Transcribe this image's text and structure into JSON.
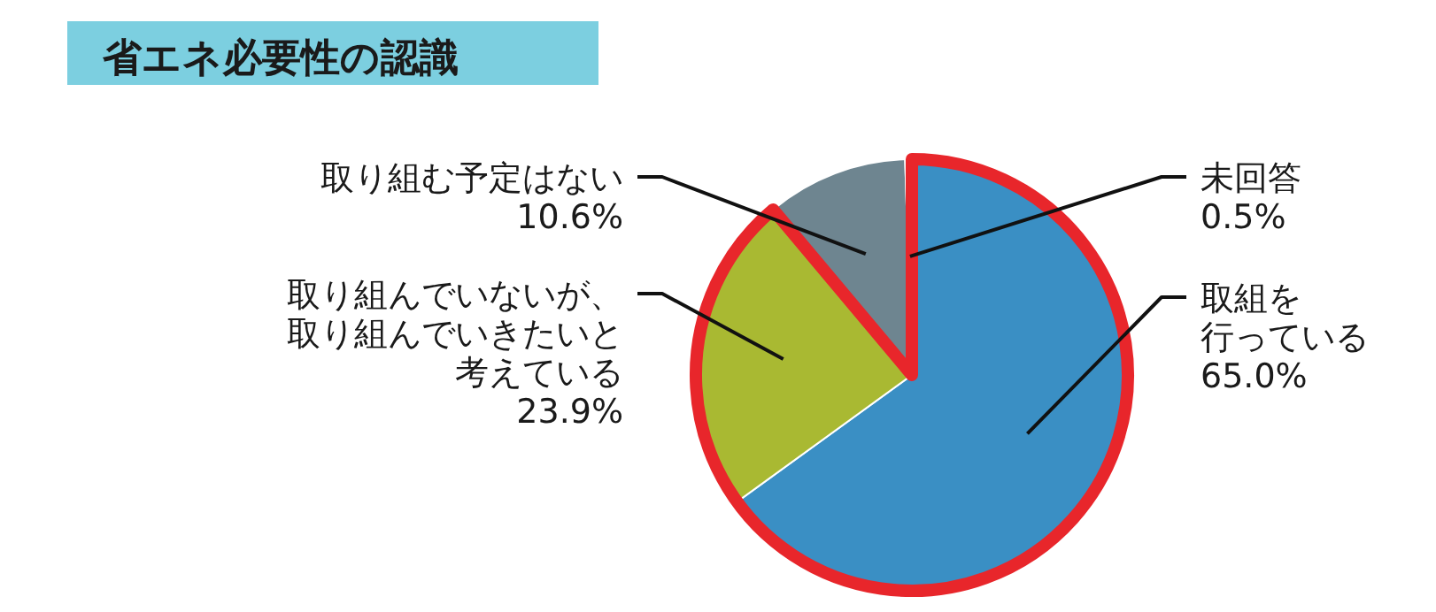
{
  "chart_data": {
    "type": "pie",
    "title": "省エネ必要性の認識",
    "categories": [
      "取組を行っている",
      "取り組んでいないが、取り組んでいきたいと考えている",
      "取り組む予定はない",
      "未回答"
    ],
    "values": [
      65.0,
      23.9,
      10.6,
      0.5
    ],
    "value_labels": [
      "65.0%",
      "23.9%",
      "10.6%",
      "0.5%"
    ],
    "colors": [
      "#3a8fc4",
      "#a9b932",
      "#6e8590",
      "#c9d3d8"
    ]
  }
}
